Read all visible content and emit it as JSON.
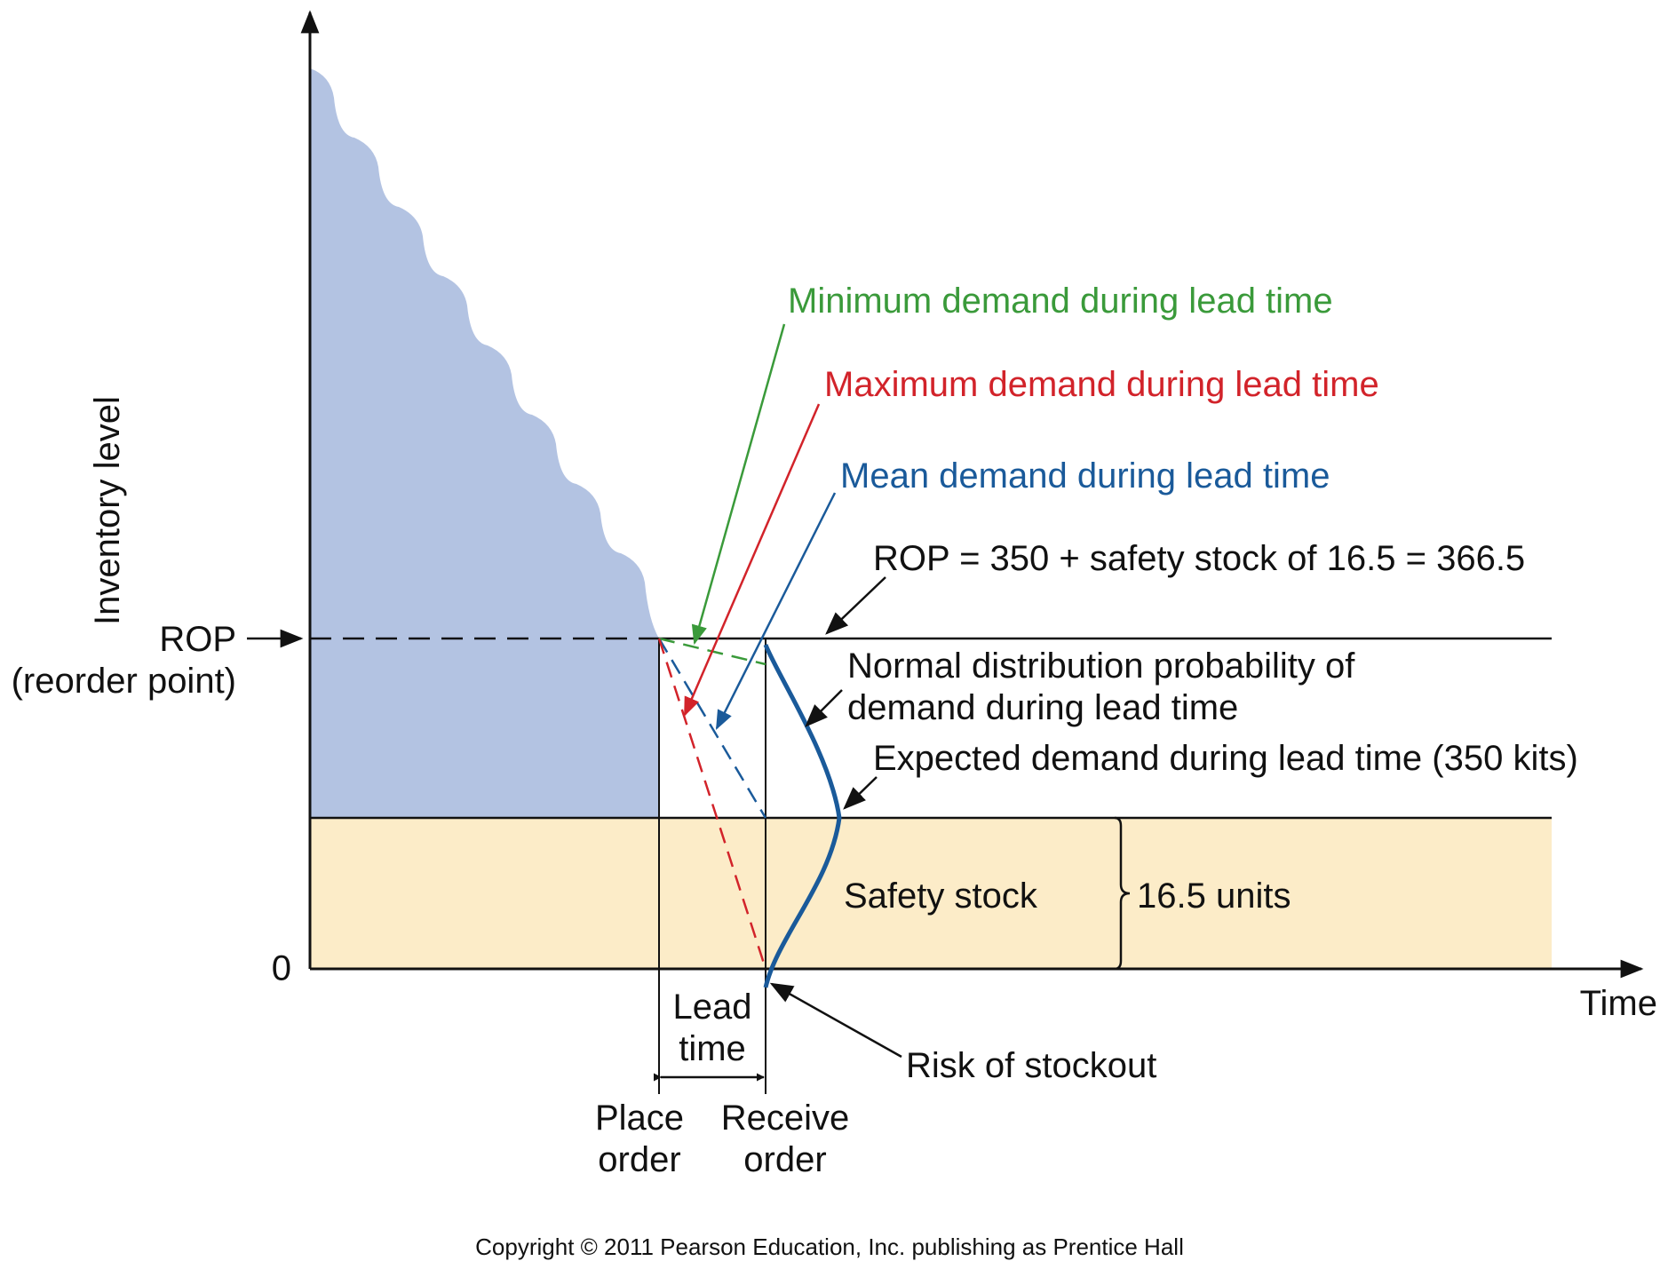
{
  "axes": {
    "y_label": "Inventory  level",
    "x_label": "Time",
    "zero_label": "0",
    "rop_label": "ROP",
    "rop_sublabel": "(reorder point)"
  },
  "annotations": {
    "min_demand": "Minimum demand during lead time",
    "max_demand": "Maximum demand during lead time",
    "mean_demand": "Mean demand during lead time",
    "rop_formula": "ROP = 350 + safety stock of 16.5 = 366.5",
    "normal_dist_line1": "Normal distribution probability of",
    "normal_dist_line2": "demand during lead time",
    "expected_demand": "Expected demand during lead time (350 kits)",
    "safety_stock": "Safety stock",
    "safety_units": "16.5 units",
    "risk_stockout": "Risk of stockout",
    "lead_time_line1": "Lead",
    "lead_time_line2": "time",
    "place_order_line1": "Place",
    "place_order_line2": "order",
    "receive_order_line1": "Receive",
    "receive_order_line2": "order"
  },
  "copyright": "Copyright © 2011 Pearson Education, Inc. publishing as Prentice Hall",
  "colors": {
    "inventory_fill": "#b3c3e2",
    "safety_fill": "#fcecc8",
    "min_green": "#3a9a3a",
    "max_red": "#d2232a",
    "mean_blue": "#1a5a9a",
    "axis": "#111111"
  }
}
